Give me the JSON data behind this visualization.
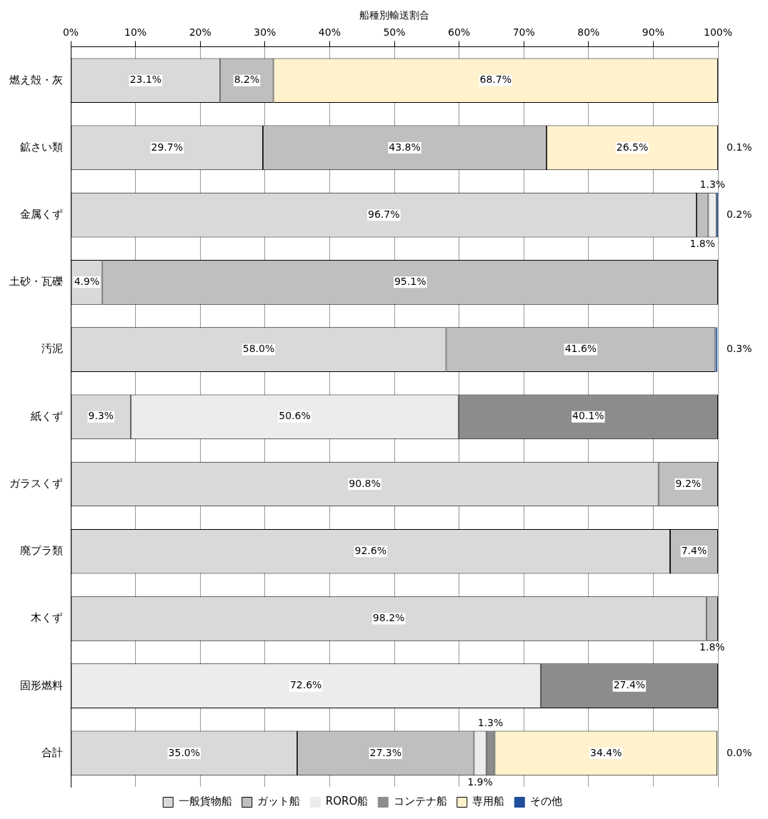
{
  "chart_data": {
    "type": "bar",
    "orientation": "horizontal",
    "stacked": true,
    "xlabel": "船種別輸送割合",
    "categories": [
      "燃え殻・灰",
      "鉱さい類",
      "金属くず",
      "土砂・瓦礫",
      "汚泥",
      "紙くず",
      "ガラスくず",
      "廃プラ類",
      "木くず",
      "固形燃料",
      "合計"
    ],
    "series": [
      {
        "name": "一般貨物船",
        "color": "#d9d9d9",
        "values": [
          23.1,
          29.7,
          96.7,
          4.9,
          58.0,
          9.3,
          90.8,
          92.6,
          98.2,
          null,
          35.0
        ],
        "value_labels": [
          "23.1%",
          "29.7%",
          "96.7%",
          "4.9%",
          "58.0%",
          "9.3%",
          "90.8%",
          "92.6%",
          "98.2%",
          null,
          "35.0%"
        ]
      },
      {
        "name": "ガット船",
        "color": "#bfbfbf",
        "values": [
          8.2,
          43.8,
          1.8,
          95.1,
          41.6,
          null,
          9.2,
          7.4,
          1.8,
          null,
          27.3
        ],
        "value_labels": [
          "8.2%",
          "43.8%",
          "1.8%",
          "95.1%",
          "41.6%",
          null,
          "9.2%",
          "7.4%",
          "1.8%",
          null,
          "27.3%"
        ]
      },
      {
        "name": "RORO船",
        "color": "#ececec",
        "values": [
          null,
          null,
          1.3,
          null,
          null,
          50.6,
          null,
          null,
          null,
          72.6,
          1.9
        ],
        "value_labels": [
          null,
          null,
          "1.3%",
          null,
          null,
          "50.6%",
          null,
          null,
          null,
          "72.6%",
          "1.9%"
        ]
      },
      {
        "name": "コンテナ船",
        "color": "#8c8c8c",
        "values": [
          null,
          null,
          null,
          null,
          null,
          40.1,
          null,
          null,
          null,
          27.4,
          1.3
        ],
        "value_labels": [
          null,
          null,
          null,
          null,
          null,
          "40.1%",
          null,
          null,
          null,
          "27.4%",
          "1.3%"
        ]
      },
      {
        "name": "専用船",
        "color": "#fff2cc",
        "values": [
          68.7,
          26.5,
          null,
          null,
          null,
          null,
          null,
          null,
          null,
          null,
          34.4
        ],
        "value_labels": [
          "68.7%",
          "26.5%",
          null,
          null,
          null,
          null,
          null,
          null,
          null,
          null,
          "34.4%"
        ]
      },
      {
        "name": "その他",
        "color": "#1f4e9a",
        "values": [
          null,
          0.1,
          0.2,
          null,
          0.3,
          null,
          null,
          null,
          null,
          null,
          0.0
        ],
        "value_labels": [
          null,
          "0.1%",
          "0.2%",
          null,
          "0.3%",
          null,
          null,
          null,
          null,
          null,
          "0.0%"
        ]
      }
    ],
    "xlim": [
      0,
      100
    ],
    "xticks": [
      {
        "value": 0,
        "label": "0%"
      },
      {
        "value": 10,
        "label": "10%"
      },
      {
        "value": 20,
        "label": "20%"
      },
      {
        "value": 30,
        "label": "30%"
      },
      {
        "value": 40,
        "label": "40%"
      },
      {
        "value": 50,
        "label": "50%"
      },
      {
        "value": 60,
        "label": "60%"
      },
      {
        "value": 70,
        "label": "70%"
      },
      {
        "value": 80,
        "label": "80%"
      },
      {
        "value": 90,
        "label": "90%"
      },
      {
        "value": 100,
        "label": "100%"
      }
    ],
    "grid": "x",
    "legend": "bottom"
  }
}
